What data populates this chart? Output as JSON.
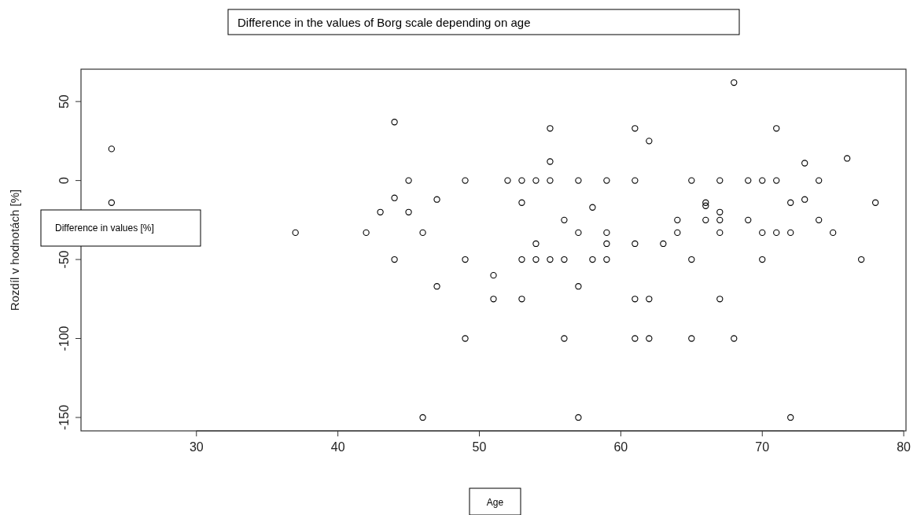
{
  "chart_data": {
    "type": "scatter",
    "title": "Difference in the values of Borg scale depending on age",
    "xlabel": "Age",
    "ylabel": "Rozdíl v hodnotách [%]",
    "annotations": [
      "Difference in values [%]"
    ],
    "marker": "circle",
    "grid": false,
    "xlim": [
      21.84,
      80.16
    ],
    "ylim": [
      -158.48,
      70.48
    ],
    "xticks": [
      30,
      40,
      50,
      60,
      70,
      80
    ],
    "yticks": [
      -150,
      -100,
      -50,
      0,
      50
    ],
    "series": [
      {
        "color": "#000000",
        "x": [
          24,
          24,
          37,
          42,
          43,
          44,
          44,
          44,
          45,
          45,
          46,
          46,
          47,
          47,
          49,
          49,
          49,
          51,
          51,
          52,
          53,
          53,
          53,
          53,
          54,
          54,
          54,
          55,
          55,
          55,
          55,
          56,
          56,
          56,
          57,
          57,
          57,
          57,
          58,
          58,
          59,
          59,
          59,
          59,
          61,
          61,
          61,
          61,
          61,
          62,
          62,
          62,
          63,
          64,
          64,
          65,
          65,
          65,
          66,
          66,
          66,
          67,
          67,
          67,
          67,
          67,
          68,
          68,
          69,
          69,
          70,
          70,
          70,
          71,
          71,
          71,
          72,
          72,
          72,
          73,
          73,
          74,
          74,
          75,
          76,
          77,
          78
        ],
        "values": [
          20,
          -14,
          -33,
          -33,
          -20,
          37,
          -11,
          -50,
          0,
          -20,
          -33,
          -150,
          -12,
          -67,
          0,
          -50,
          -100,
          -60,
          -75,
          0,
          0,
          -14,
          -50,
          -75,
          0,
          -40,
          -50,
          33,
          12,
          0,
          -50,
          -25,
          -50,
          -100,
          0,
          -33,
          -67,
          -150,
          -17,
          -50,
          0,
          -33,
          -40,
          -50,
          33,
          0,
          -40,
          -75,
          -100,
          25,
          -75,
          -100,
          -40,
          -25,
          -33,
          0,
          -50,
          -100,
          -14,
          -16,
          -25,
          0,
          -20,
          -25,
          -33,
          -75,
          62,
          -100,
          0,
          -25,
          0,
          -33,
          -50,
          33,
          0,
          -33,
          -14,
          -33,
          -150,
          11,
          -12,
          0,
          -25,
          -33,
          14,
          -50,
          -14
        ]
      }
    ]
  }
}
